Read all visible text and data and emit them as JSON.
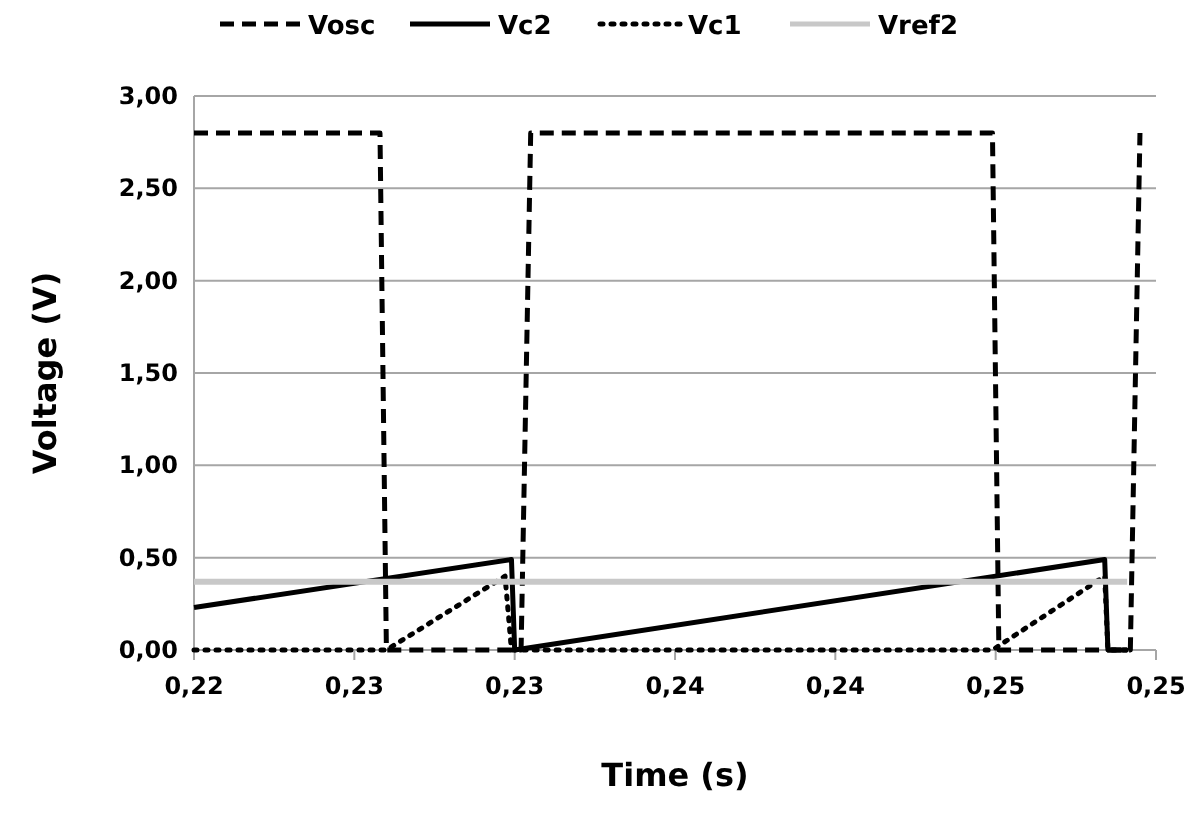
{
  "chart_data": {
    "type": "line",
    "xlabel": "Time (s)",
    "ylabel": "Voltage (V)",
    "xlim": [
      0.22,
      0.25
    ],
    "ylim": [
      0,
      3
    ],
    "xticks": [
      {
        "value": 0.22,
        "label": "0,22"
      },
      {
        "value": 0.225,
        "label": "0,23"
      },
      {
        "value": 0.23,
        "label": "0,23"
      },
      {
        "value": 0.235,
        "label": "0,24"
      },
      {
        "value": 0.24,
        "label": "0,24"
      },
      {
        "value": 0.245,
        "label": "0,25"
      },
      {
        "value": 0.25,
        "label": "0,25"
      }
    ],
    "yticks": [
      {
        "value": 0,
        "label": "0,00"
      },
      {
        "value": 0.5,
        "label": "0,50"
      },
      {
        "value": 1,
        "label": "1,00"
      },
      {
        "value": 1.5,
        "label": "1,50"
      },
      {
        "value": 2,
        "label": "2,00"
      },
      {
        "value": 2.5,
        "label": "2,50"
      },
      {
        "value": 3,
        "label": "3,00"
      }
    ],
    "grid": "y",
    "legend": "top",
    "series": [
      {
        "name": "Vosc",
        "color": "#000000",
        "line_style": "dashed",
        "x": [
          0.22,
          0.2258,
          0.226,
          0.2302,
          0.2305,
          0.2449,
          0.2451,
          0.2492,
          0.2495
        ],
        "values": [
          2.8,
          2.8,
          0,
          0,
          2.8,
          2.8,
          0,
          0,
          2.8
        ]
      },
      {
        "name": "Vc2",
        "color": "#000000",
        "line_style": "solid",
        "x": [
          0.22,
          0.2299,
          0.23,
          0.2484,
          0.2485,
          0.2491
        ],
        "values": [
          0.23,
          0.49,
          0,
          0.49,
          0,
          0
        ]
      },
      {
        "name": "Vc1",
        "color": "#000000",
        "line_style": "dotted",
        "x": [
          0.22,
          0.226,
          0.2297,
          0.2299,
          0.2449,
          0.2484,
          0.2485,
          0.2491
        ],
        "values": [
          0,
          0,
          0.4,
          0,
          0,
          0.4,
          0,
          0
        ]
      },
      {
        "name": "Vref2",
        "color": "#c8c8c8",
        "line_style": "solid",
        "x": [
          0.22,
          0.2491
        ],
        "values": [
          0.37,
          0.37
        ]
      }
    ]
  }
}
